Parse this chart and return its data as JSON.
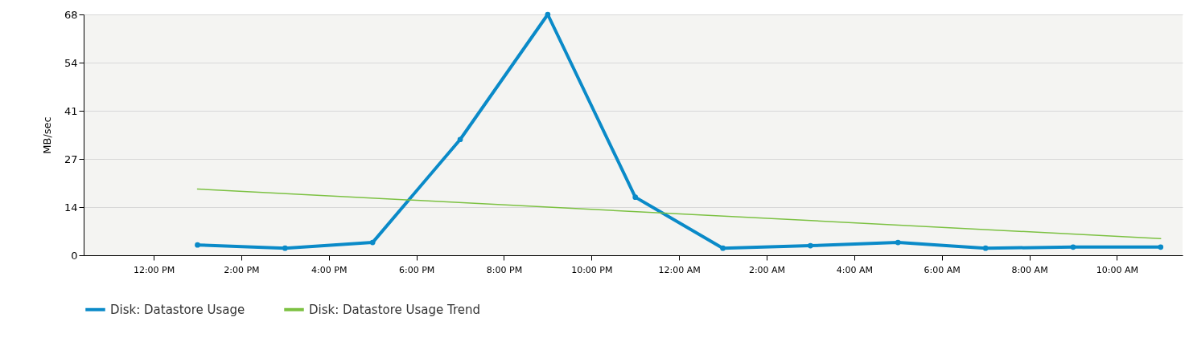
{
  "chart_data": {
    "type": "line",
    "ylabel": "MB/sec",
    "xlim": [
      "2000-01-01T10:24",
      "2000-01-02T11:30"
    ],
    "xticks": [
      {
        "value": "2000-01-01T12:00",
        "label": "12:00 PM"
      },
      {
        "value": "2000-01-01T14:00",
        "label": "2:00 PM"
      },
      {
        "value": "2000-01-01T16:00",
        "label": "4:00 PM"
      },
      {
        "value": "2000-01-01T18:00",
        "label": "6:00 PM"
      },
      {
        "value": "2000-01-01T20:00",
        "label": "8:00 PM"
      },
      {
        "value": "2000-01-01T22:00",
        "label": "10:00 PM"
      },
      {
        "value": "2000-01-02T00:00",
        "label": "12:00 AM"
      },
      {
        "value": "2000-01-02T02:00",
        "label": "2:00 AM"
      },
      {
        "value": "2000-01-02T04:00",
        "label": "4:00 AM"
      },
      {
        "value": "2000-01-02T06:00",
        "label": "6:00 AM"
      },
      {
        "value": "2000-01-02T08:00",
        "label": "8:00 AM"
      },
      {
        "value": "2000-01-02T10:00",
        "label": "10:00 AM"
      }
    ],
    "ylim": [
      0,
      68
    ],
    "yticks": [
      0,
      {
        "value": 13.6,
        "label": "14"
      },
      {
        "value": 27.2,
        "label": "27"
      },
      {
        "value": 40.8,
        "label": "41"
      },
      {
        "value": 54.4,
        "label": "54"
      },
      68
    ],
    "x": [
      "2000-01-01T13:00",
      "2000-01-01T15:00",
      "2000-01-01T17:00",
      "2000-01-01T19:00",
      "2000-01-01T21:00",
      "2000-01-01T23:00",
      "2000-01-02T01:00",
      "2000-01-02T03:00",
      "2000-01-02T05:00",
      "2000-01-02T07:00",
      "2000-01-02T09:00",
      "2000-01-02T11:00"
    ],
    "series": [
      {
        "name": "Disk: Datastore Usage",
        "color": "#0a8ac8",
        "marker": "circle",
        "values": [
          2.9,
          2.0,
          3.6,
          32.7,
          68,
          16.4,
          2.0,
          2.7,
          3.6,
          2.0,
          2.3,
          2.3
        ]
      },
      {
        "name": "Disk: Datastore Usage Trend",
        "color": "#7cc142",
        "marker": "none",
        "x": [
          "2000-01-01T13:00",
          "2000-01-02T11:00"
        ],
        "values": [
          18.7,
          4.7
        ]
      }
    ],
    "grid": "y",
    "legend": "bottom",
    "line_style": "solid"
  }
}
